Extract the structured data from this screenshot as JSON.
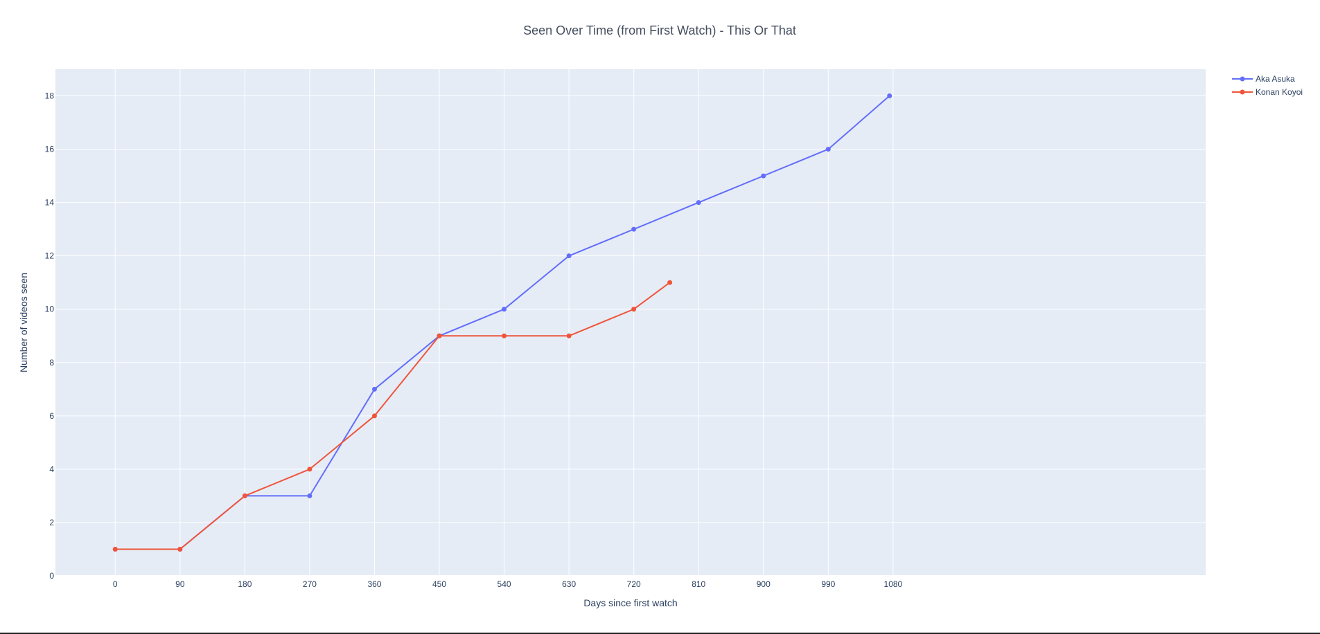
{
  "chart_data": {
    "type": "line",
    "title": "Seen Over Time (from First Watch) - This Or That",
    "xlabel": "Days since first watch",
    "ylabel": "Number of videos seen",
    "xlim": [
      -83,
      1514
    ],
    "ylim": [
      0,
      19
    ],
    "xticks": [
      0,
      90,
      180,
      270,
      360,
      450,
      540,
      630,
      720,
      810,
      900,
      990,
      1080
    ],
    "yticks": [
      0,
      2,
      4,
      6,
      8,
      10,
      12,
      14,
      16,
      18
    ],
    "grid": true,
    "legend_position": "top-right",
    "series": [
      {
        "name": "Aka Asuka",
        "color": "#636efa",
        "x": [
          0,
          90,
          180,
          270,
          360,
          450,
          540,
          630,
          720,
          810,
          900,
          990,
          1075
        ],
        "y": [
          1,
          1,
          3,
          3,
          7,
          9,
          10,
          12,
          13,
          14,
          15,
          16,
          18
        ]
      },
      {
        "name": "Konan Koyoi",
        "color": "#ef553b",
        "x": [
          0,
          90,
          180,
          270,
          360,
          450,
          540,
          630,
          720,
          770
        ],
        "y": [
          1,
          1,
          3,
          4,
          6,
          9,
          9,
          9,
          10,
          11
        ]
      }
    ]
  },
  "colors": {
    "plot_background": "#e5ecf6",
    "gridline": "#ffffff",
    "text": "#2a3f5f"
  }
}
